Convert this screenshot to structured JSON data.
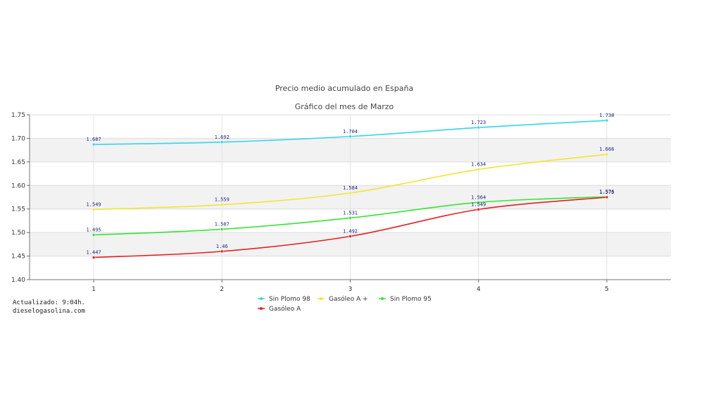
{
  "chart_data": {
    "type": "line",
    "title": "Precio medio acumulado en España",
    "subtitle": "Gráfico del mes de Marzo",
    "x": [
      1,
      2,
      3,
      4,
      5
    ],
    "xticks": [
      "1",
      "2",
      "3",
      "4",
      "5"
    ],
    "ylim": [
      1.4,
      1.75
    ],
    "yticks": [
      "1.40",
      "1.45",
      "1.50",
      "1.55",
      "1.60",
      "1.65",
      "1.70",
      "1.75"
    ],
    "grid": true,
    "legend_position": "bottom",
    "series": [
      {
        "name": "Sin Plomo 98",
        "color": "#33d6e8",
        "values": [
          1.687,
          1.692,
          1.704,
          1.723,
          1.738
        ],
        "labels": [
          "1.687",
          "1.692",
          "1.704",
          "1.723",
          "1.738"
        ]
      },
      {
        "name": "Gasóleo A +",
        "color": "#f0e630",
        "values": [
          1.549,
          1.559,
          1.584,
          1.634,
          1.666
        ],
        "labels": [
          "1.549",
          "1.559",
          "1.584",
          "1.634",
          "1.666"
        ]
      },
      {
        "name": "Sin Plomo 95",
        "color": "#33e633",
        "values": [
          1.495,
          1.507,
          1.531,
          1.564,
          1.576
        ],
        "labels": [
          "1.495",
          "1.507",
          "1.531",
          "1.564",
          "1.576"
        ]
      },
      {
        "name": "Gasóleo A",
        "color": "#e62020",
        "values": [
          1.447,
          1.46,
          1.492,
          1.549,
          1.575
        ],
        "labels": [
          "1.447",
          "1.46",
          "1.492",
          "1.549",
          "1.575"
        ]
      }
    ]
  },
  "footer": {
    "updated": "Actualizado: 9:04h.",
    "site": "dieselogasolina.com"
  }
}
